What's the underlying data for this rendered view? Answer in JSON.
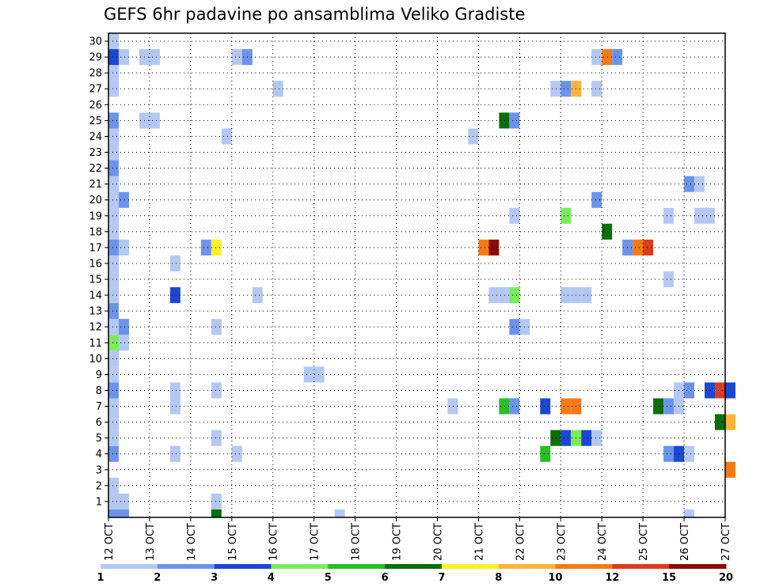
{
  "chart_data": {
    "type": "heatmap",
    "title": "GEFS 6hr padavine po ansamblima Veliko Gradiste",
    "xlabel": "",
    "ylabel": "",
    "grid": true,
    "x_ticks": [
      "12 OCT",
      "13 OCT",
      "14 OCT",
      "15 OCT",
      "16 OCT",
      "17 OCT",
      "18 OCT",
      "19 OCT",
      "20 OCT",
      "21 OCT",
      "22 OCT",
      "23 OCT",
      "24 OCT",
      "25 OCT",
      "26 OCT",
      "27 OCT"
    ],
    "y_ticks": [
      1,
      2,
      3,
      4,
      5,
      6,
      7,
      8,
      9,
      10,
      11,
      12,
      13,
      14,
      15,
      16,
      17,
      18,
      19,
      20,
      21,
      22,
      23,
      24,
      25,
      26,
      27,
      28,
      29,
      30
    ],
    "time_steps_per_day": 4,
    "colorbar": {
      "labels": [
        "1",
        "2",
        "3",
        "4",
        "5",
        "6",
        "7",
        "8",
        "10",
        "12",
        "15",
        "20"
      ],
      "colors": [
        "#b4c8f4",
        "#6b93eb",
        "#1c46d4",
        "#78ec5c",
        "#24c024",
        "#0a6e0a",
        "#fff028",
        "#ffb43c",
        "#f57a14",
        "#dc3c1e",
        "#8c0a0a"
      ]
    },
    "cells": [
      {
        "t": 0,
        "m": 0,
        "c": 1
      },
      {
        "t": 1,
        "m": 0,
        "c": 1
      },
      {
        "t": 0,
        "m": 1,
        "c": 0
      },
      {
        "t": 0,
        "m": 2,
        "c": 0
      },
      {
        "t": 1,
        "m": 1,
        "c": 0
      },
      {
        "t": 0,
        "m": 4,
        "c": 1
      },
      {
        "t": 0,
        "m": 5,
        "c": 0
      },
      {
        "t": 0,
        "m": 6,
        "c": 0
      },
      {
        "t": 0,
        "m": 7,
        "c": 0
      },
      {
        "t": 0,
        "m": 8,
        "c": 1
      },
      {
        "t": 0,
        "m": 9,
        "c": 0
      },
      {
        "t": 0,
        "m": 10,
        "c": 0
      },
      {
        "t": 0,
        "m": 11,
        "c": 3
      },
      {
        "t": 0,
        "m": 12,
        "c": 0
      },
      {
        "t": 0,
        "m": 13,
        "c": 1
      },
      {
        "t": 0,
        "m": 14,
        "c": 0
      },
      {
        "t": 0,
        "m": 15,
        "c": 0
      },
      {
        "t": 0,
        "m": 16,
        "c": 0
      },
      {
        "t": 0,
        "m": 17,
        "c": 1
      },
      {
        "t": 0,
        "m": 18,
        "c": 0
      },
      {
        "t": 0,
        "m": 19,
        "c": 0
      },
      {
        "t": 0,
        "m": 20,
        "c": 0
      },
      {
        "t": 0,
        "m": 21,
        "c": 0
      },
      {
        "t": 0,
        "m": 22,
        "c": 1
      },
      {
        "t": 0,
        "m": 23,
        "c": 0
      },
      {
        "t": 0,
        "m": 24,
        "c": 0
      },
      {
        "t": 0,
        "m": 25,
        "c": 1
      },
      {
        "t": 0,
        "m": 27,
        "c": 0
      },
      {
        "t": 0,
        "m": 28,
        "c": 0
      },
      {
        "t": 0,
        "m": 29,
        "c": 2
      },
      {
        "t": 0,
        "m": 30,
        "c": 0
      },
      {
        "t": 1,
        "m": 11,
        "c": 0
      },
      {
        "t": 1,
        "m": 12,
        "c": 1
      },
      {
        "t": 1,
        "m": 17,
        "c": 0
      },
      {
        "t": 1,
        "m": 20,
        "c": 1
      },
      {
        "t": 1,
        "m": 29,
        "c": 0
      },
      {
        "t": 3,
        "m": 25,
        "c": 0
      },
      {
        "t": 3,
        "m": 29,
        "c": 0
      },
      {
        "t": 4,
        "m": 25,
        "c": 0
      },
      {
        "t": 4,
        "m": 29,
        "c": 0
      },
      {
        "t": 6,
        "m": 4,
        "c": 0
      },
      {
        "t": 6,
        "m": 14,
        "c": 2
      },
      {
        "t": 6,
        "m": 16,
        "c": 0
      },
      {
        "t": 6,
        "m": 7,
        "c": 0
      },
      {
        "t": 6,
        "m": 8,
        "c": 0
      },
      {
        "t": 9,
        "m": 17,
        "c": 1
      },
      {
        "t": 10,
        "m": 17,
        "c": 6
      },
      {
        "t": 10,
        "m": 0,
        "c": 5
      },
      {
        "t": 10,
        "m": 1,
        "c": 0
      },
      {
        "t": 10,
        "m": 5,
        "c": 0
      },
      {
        "t": 10,
        "m": 8,
        "c": 0
      },
      {
        "t": 10,
        "m": 12,
        "c": 0
      },
      {
        "t": 11,
        "m": 24,
        "c": 0
      },
      {
        "t": 12,
        "m": 4,
        "c": 0
      },
      {
        "t": 12,
        "m": 29,
        "c": 0
      },
      {
        "t": 13,
        "m": 29,
        "c": 1
      },
      {
        "t": 14,
        "m": 14,
        "c": 0
      },
      {
        "t": 16,
        "m": 27,
        "c": 0
      },
      {
        "t": 19,
        "m": 9,
        "c": 0
      },
      {
        "t": 20,
        "m": 9,
        "c": 0
      },
      {
        "t": 22,
        "m": 0,
        "c": 0
      },
      {
        "t": 33,
        "m": 7,
        "c": 0
      },
      {
        "t": 35,
        "m": 24,
        "c": 0
      },
      {
        "t": 36,
        "m": 17,
        "c": 8
      },
      {
        "t": 37,
        "m": 17,
        "c": 10
      },
      {
        "t": 37,
        "m": 14,
        "c": 0
      },
      {
        "t": 38,
        "m": 14,
        "c": 0
      },
      {
        "t": 38,
        "m": 25,
        "c": 5
      },
      {
        "t": 38,
        "m": 7,
        "c": 4
      },
      {
        "t": 39,
        "m": 25,
        "c": 1
      },
      {
        "t": 39,
        "m": 7,
        "c": 1
      },
      {
        "t": 39,
        "m": 14,
        "c": 3
      },
      {
        "t": 39,
        "m": 12,
        "c": 1
      },
      {
        "t": 39,
        "m": 19,
        "c": 0
      },
      {
        "t": 40,
        "m": 12,
        "c": 0
      },
      {
        "t": 42,
        "m": 4,
        "c": 4
      },
      {
        "t": 42,
        "m": 7,
        "c": 2
      },
      {
        "t": 43,
        "m": 5,
        "c": 5
      },
      {
        "t": 43,
        "m": 27,
        "c": 0
      },
      {
        "t": 44,
        "m": 27,
        "c": 1
      },
      {
        "t": 44,
        "m": 5,
        "c": 2
      },
      {
        "t": 44,
        "m": 19,
        "c": 3
      },
      {
        "t": 44,
        "m": 14,
        "c": 0
      },
      {
        "t": 44,
        "m": 7,
        "c": 8
      },
      {
        "t": 45,
        "m": 27,
        "c": 7
      },
      {
        "t": 45,
        "m": 5,
        "c": 3
      },
      {
        "t": 45,
        "m": 14,
        "c": 0
      },
      {
        "t": 45,
        "m": 7,
        "c": 8
      },
      {
        "t": 46,
        "m": 5,
        "c": 2
      },
      {
        "t": 46,
        "m": 14,
        "c": 0
      },
      {
        "t": 47,
        "m": 5,
        "c": 0
      },
      {
        "t": 47,
        "m": 20,
        "c": 1
      },
      {
        "t": 47,
        "m": 27,
        "c": 0
      },
      {
        "t": 47,
        "m": 29,
        "c": 0
      },
      {
        "t": 48,
        "m": 29,
        "c": 8
      },
      {
        "t": 48,
        "m": 18,
        "c": 5
      },
      {
        "t": 49,
        "m": 29,
        "c": 1
      },
      {
        "t": 50,
        "m": 17,
        "c": 1
      },
      {
        "t": 51,
        "m": 17,
        "c": 8
      },
      {
        "t": 52,
        "m": 17,
        "c": 9
      },
      {
        "t": 53,
        "m": 7,
        "c": 5
      },
      {
        "t": 54,
        "m": 7,
        "c": 1
      },
      {
        "t": 54,
        "m": 4,
        "c": 1
      },
      {
        "t": 54,
        "m": 15,
        "c": 0
      },
      {
        "t": 54,
        "m": 19,
        "c": 0
      },
      {
        "t": 55,
        "m": 4,
        "c": 2
      },
      {
        "t": 55,
        "m": 7,
        "c": 0
      },
      {
        "t": 55,
        "m": 8,
        "c": 0
      },
      {
        "t": 56,
        "m": 4,
        "c": 0
      },
      {
        "t": 56,
        "m": 8,
        "c": 1
      },
      {
        "t": 56,
        "m": 21,
        "c": 1
      },
      {
        "t": 56,
        "m": 0,
        "c": 0
      },
      {
        "t": 57,
        "m": 21,
        "c": 0
      },
      {
        "t": 57,
        "m": 19,
        "c": 0
      },
      {
        "t": 58,
        "m": 19,
        "c": 0
      },
      {
        "t": 58,
        "m": 8,
        "c": 2
      },
      {
        "t": 59,
        "m": 8,
        "c": 9
      },
      {
        "t": 60,
        "m": 8,
        "c": 2
      },
      {
        "t": 59,
        "m": 6,
        "c": 5
      },
      {
        "t": 60,
        "m": 6,
        "c": 7
      },
      {
        "t": 60,
        "m": 3,
        "c": 8
      }
    ]
  }
}
